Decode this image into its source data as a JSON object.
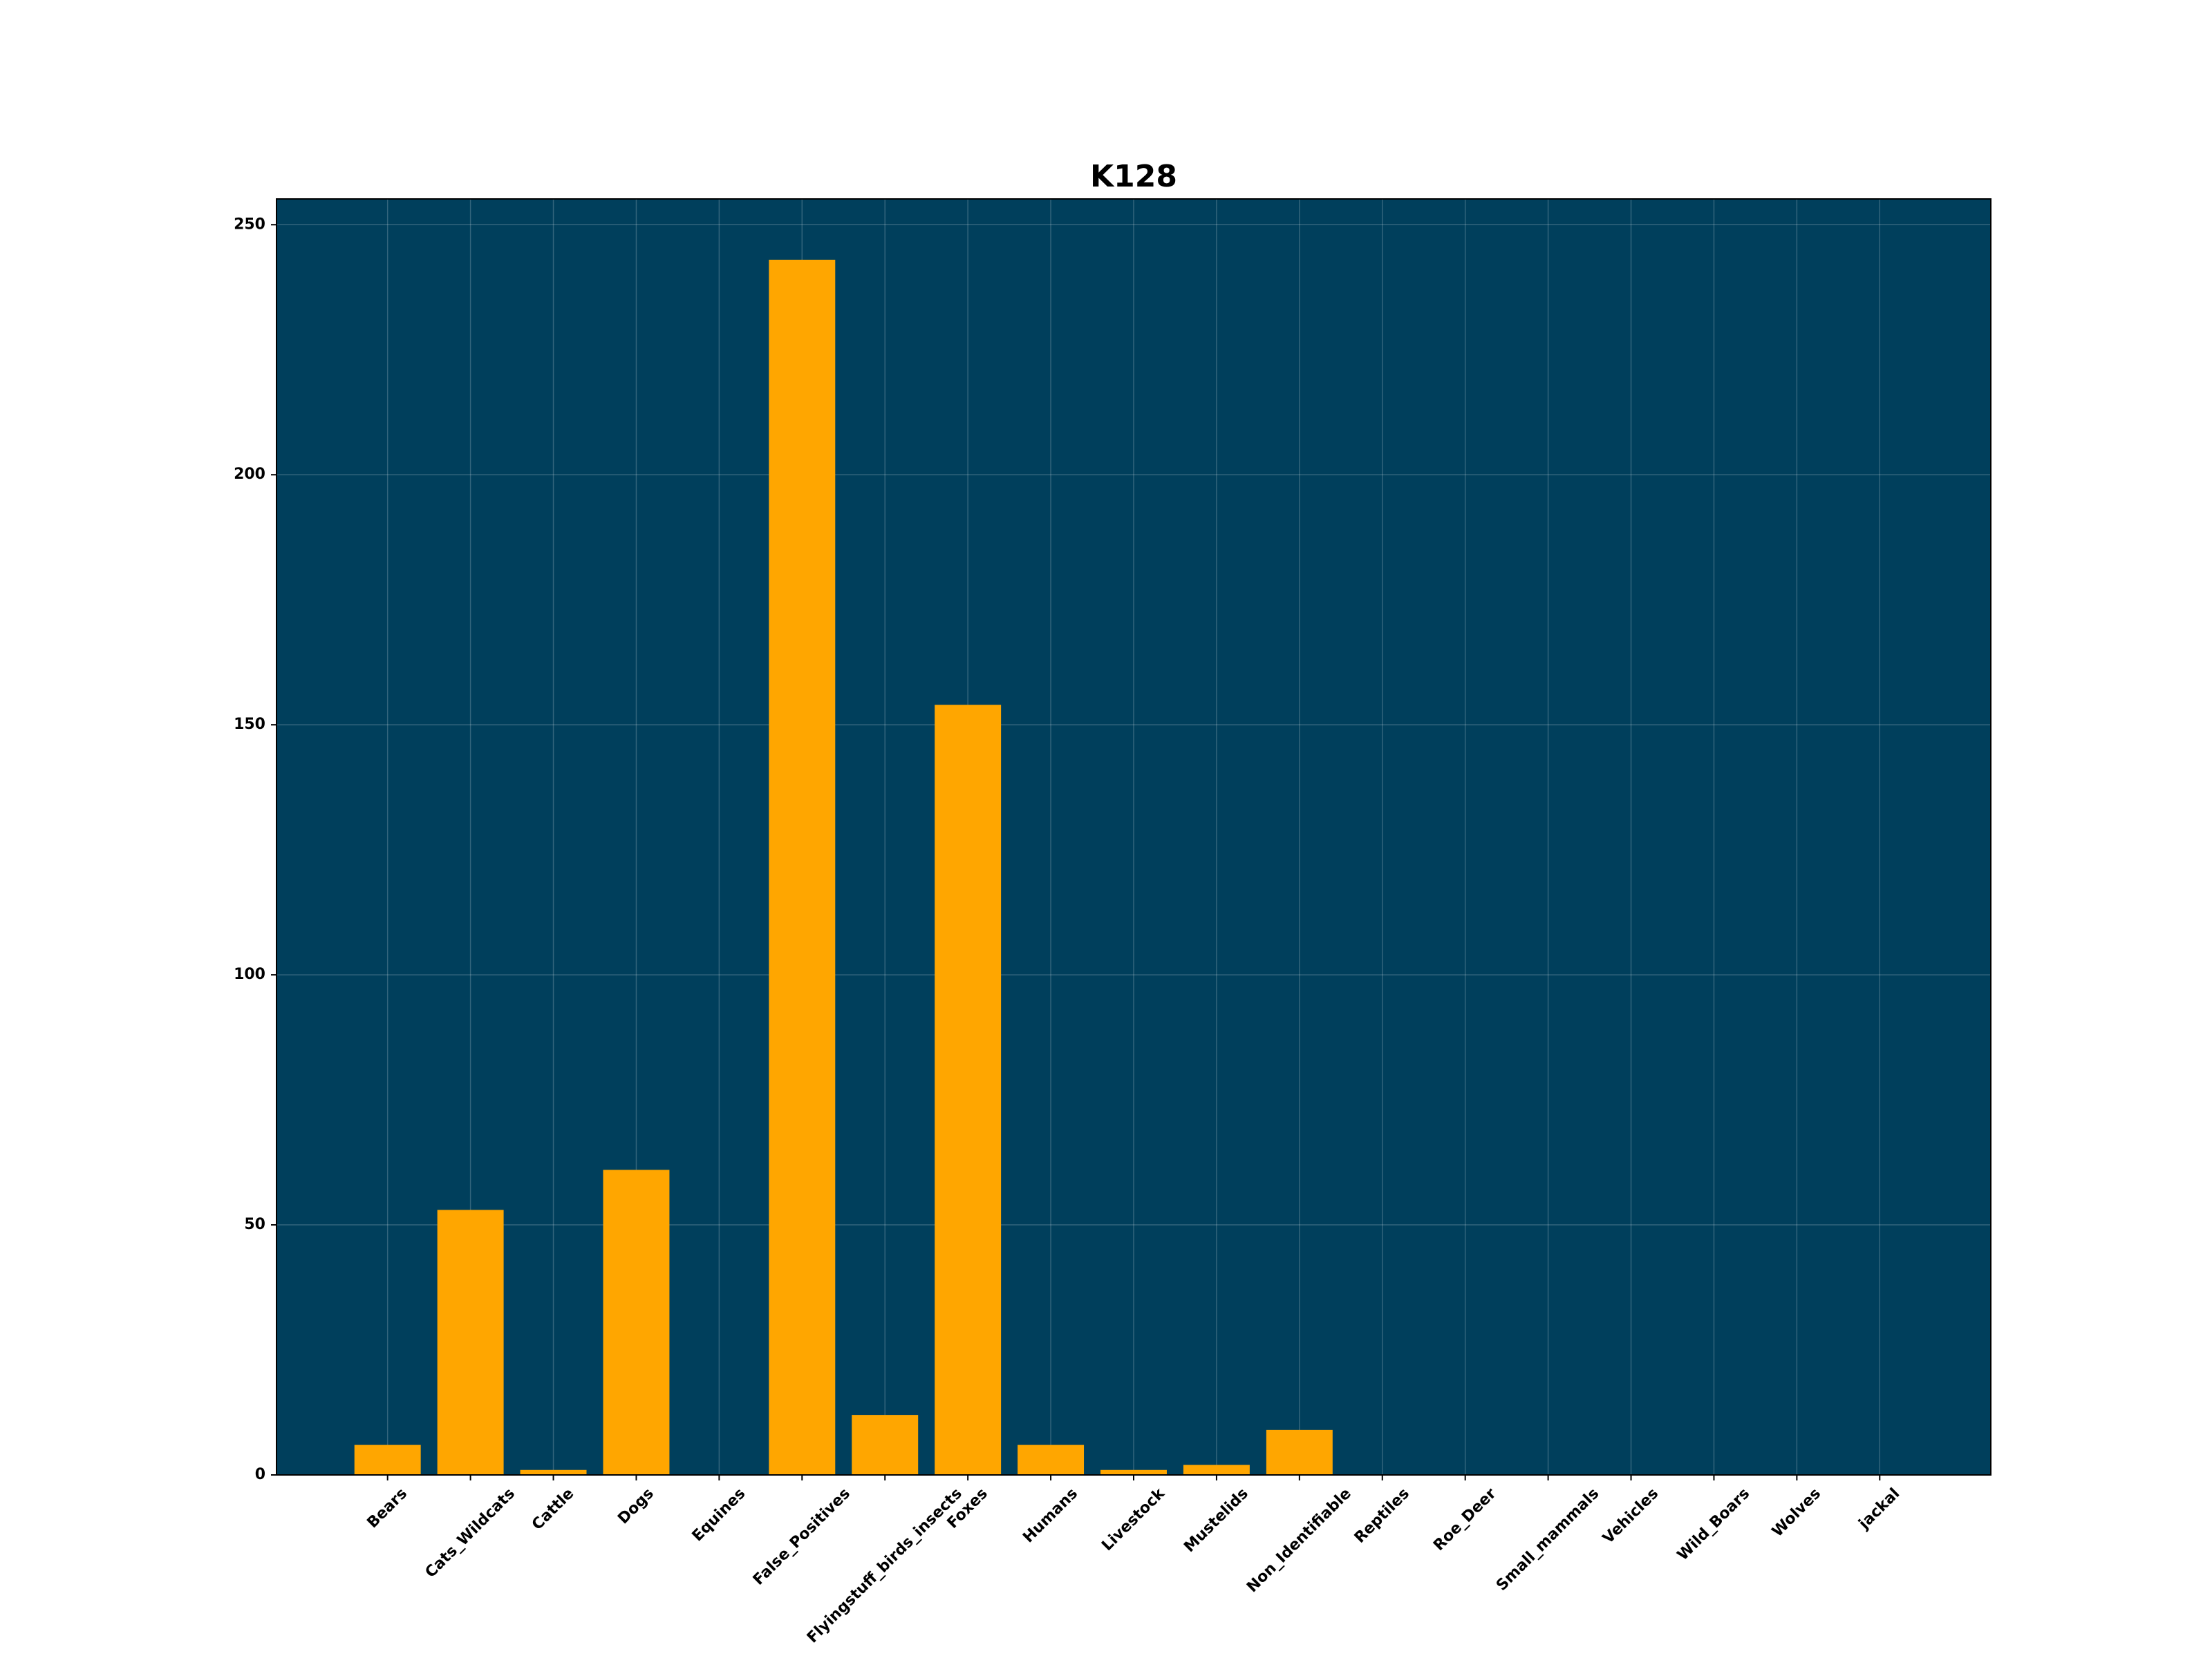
{
  "chart_data": {
    "type": "bar",
    "title": "K128",
    "categories": [
      "Bears",
      "Cats_Wildcats",
      "Cattle",
      "Dogs",
      "Equines",
      "False_Positives",
      "Flyingstuff_birds_insects",
      "Foxes",
      "Humans",
      "Livestock",
      "Mustelids",
      "Non_Identifiable",
      "Reptiles",
      "Roe_Deer",
      "Small_mammals",
      "Vehicles",
      "Wild_Boars",
      "Wolves",
      "jackal"
    ],
    "values": [
      6,
      53,
      1,
      61,
      0,
      243,
      12,
      154,
      6,
      1,
      2,
      9,
      0,
      0,
      0,
      0,
      0,
      0,
      0
    ],
    "color": "#ffa600",
    "background": "#003f5c",
    "ylim": [
      0,
      255.15
    ],
    "yticks": [
      0,
      50,
      100,
      150,
      200,
      250
    ],
    "grid": true
  }
}
